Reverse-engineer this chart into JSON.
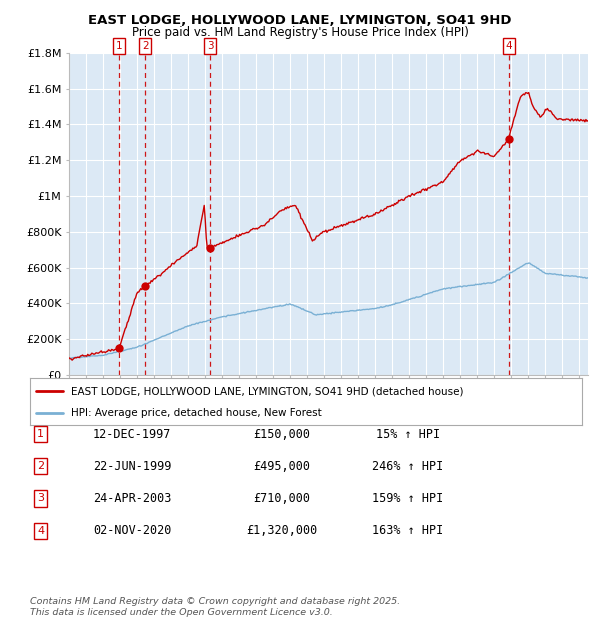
{
  "title_line1": "EAST LODGE, HOLLYWOOD LANE, LYMINGTON, SO41 9HD",
  "title_line2": "Price paid vs. HM Land Registry's House Price Index (HPI)",
  "bg_color": "#dce9f5",
  "fig_bg_color": "#ffffff",
  "red_line_color": "#cc0000",
  "blue_line_color": "#7ab0d4",
  "grid_color": "#ffffff",
  "dashed_line_color": "#cc0000",
  "ylim": [
    0,
    1800000
  ],
  "yticks": [
    0,
    200000,
    400000,
    600000,
    800000,
    1000000,
    1200000,
    1400000,
    1600000,
    1800000
  ],
  "ytick_labels": [
    "£0",
    "£200K",
    "£400K",
    "£600K",
    "£800K",
    "£1M",
    "£1.2M",
    "£1.4M",
    "£1.6M",
    "£1.8M"
  ],
  "sale_dates_num": [
    1997.95,
    1999.47,
    2003.31,
    2020.84
  ],
  "sale_prices": [
    150000,
    495000,
    710000,
    1320000
  ],
  "sale_labels": [
    "1",
    "2",
    "3",
    "4"
  ],
  "legend_red": "EAST LODGE, HOLLYWOOD LANE, LYMINGTON, SO41 9HD (detached house)",
  "legend_blue": "HPI: Average price, detached house, New Forest",
  "table": [
    [
      "1",
      "12-DEC-1997",
      "£150,000",
      "15% ↑ HPI"
    ],
    [
      "2",
      "22-JUN-1999",
      "£495,000",
      "246% ↑ HPI"
    ],
    [
      "3",
      "24-APR-2003",
      "£710,000",
      "159% ↑ HPI"
    ],
    [
      "4",
      "02-NOV-2020",
      "£1,320,000",
      "163% ↑ HPI"
    ]
  ],
  "footnote": "Contains HM Land Registry data © Crown copyright and database right 2025.\nThis data is licensed under the Open Government Licence v3.0.",
  "xmin": 1995.0,
  "xmax": 2025.5
}
